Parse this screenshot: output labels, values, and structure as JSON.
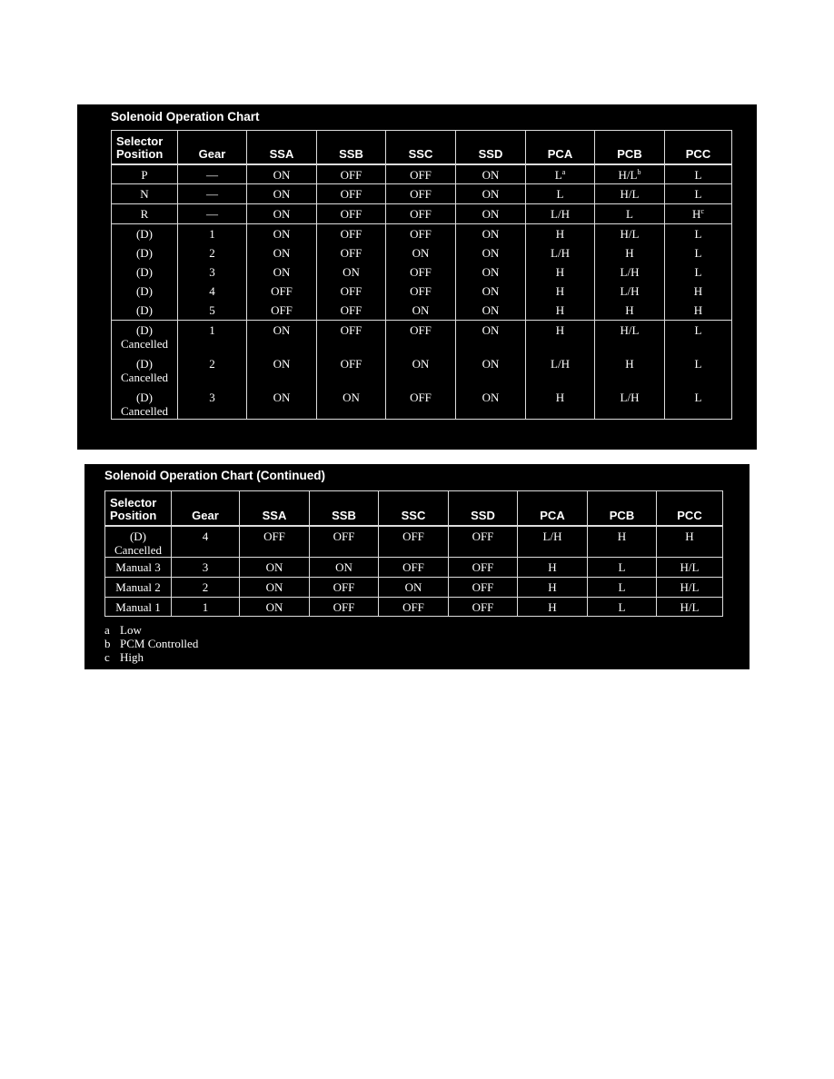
{
  "chart1": {
    "title": "Solenoid Operation Chart",
    "headers": [
      "Selector\nPosition",
      "Gear",
      "SSA",
      "SSB",
      "SSC",
      "SSD",
      "PCA",
      "PCB",
      "PCC"
    ],
    "rows": [
      {
        "sep": true,
        "h": 22,
        "cells": [
          "P",
          "—",
          "ON",
          "OFF",
          "OFF",
          "ON",
          [
            "L",
            "a"
          ],
          [
            "H/L",
            "b"
          ],
          "L"
        ]
      },
      {
        "sep": true,
        "h": 22,
        "cells": [
          "N",
          "—",
          "ON",
          "OFF",
          "OFF",
          "ON",
          "L",
          "H/L",
          "L"
        ]
      },
      {
        "sep": true,
        "h": 22,
        "cells": [
          "R",
          "—",
          "ON",
          "OFF",
          "OFF",
          "ON",
          "L/H",
          "L",
          [
            "H",
            "c"
          ]
        ]
      },
      {
        "sep": true,
        "h": 21,
        "cells": [
          "(D)",
          "1",
          "ON",
          "OFF",
          "OFF",
          "ON",
          "H",
          "H/L",
          "L"
        ]
      },
      {
        "h": 21,
        "cells": [
          "(D)",
          "2",
          "ON",
          "OFF",
          "ON",
          "ON",
          "L/H",
          "H",
          "L"
        ]
      },
      {
        "h": 21,
        "cells": [
          "(D)",
          "3",
          "ON",
          "ON",
          "OFF",
          "ON",
          "H",
          "L/H",
          "L"
        ]
      },
      {
        "h": 21,
        "cells": [
          "(D)",
          "4",
          "OFF",
          "OFF",
          "OFF",
          "ON",
          "H",
          "L/H",
          "H"
        ]
      },
      {
        "h": 22,
        "cells": [
          "(D)",
          "5",
          "OFF",
          "OFF",
          "ON",
          "ON",
          "H",
          "H",
          "H"
        ]
      },
      {
        "sep": true,
        "h": 37,
        "cells": [
          "(D)\nCancelled",
          "1",
          "ON",
          "OFF",
          "OFF",
          "ON",
          "H",
          "H/L",
          "L"
        ]
      },
      {
        "h": 37,
        "cells": [
          "(D)\nCancelled",
          "2",
          "ON",
          "OFF",
          "ON",
          "ON",
          "L/H",
          "H",
          "L"
        ]
      },
      {
        "last": true,
        "h": 35,
        "cells": [
          "(D)\nCancelled",
          "3",
          "ON",
          "ON",
          "OFF",
          "ON",
          "H",
          "L/H",
          "L"
        ]
      }
    ]
  },
  "chart2": {
    "title": "Solenoid Operation Chart (Continued)",
    "headers": [
      "Selector\nPosition",
      "Gear",
      "SSA",
      "SSB",
      "SSC",
      "SSD",
      "PCA",
      "PCB",
      "PCC"
    ],
    "rows": [
      {
        "h": 34,
        "cells": [
          "(D)\nCancelled",
          "4",
          "OFF",
          "OFF",
          "OFF",
          "OFF",
          "L/H",
          "H",
          "H"
        ]
      },
      {
        "sep": true,
        "h": 22,
        "cells": [
          "Manual 3",
          "3",
          "ON",
          "ON",
          "OFF",
          "OFF",
          "H",
          "L",
          "H/L"
        ]
      },
      {
        "sep": true,
        "h": 22,
        "cells": [
          "Manual 2",
          "2",
          "ON",
          "OFF",
          "ON",
          "OFF",
          "H",
          "L",
          "H/L"
        ]
      },
      {
        "sep": true,
        "last": true,
        "h": 21,
        "cells": [
          "Manual 1",
          "1",
          "ON",
          "OFF",
          "OFF",
          "OFF",
          "H",
          "L",
          "H/L"
        ]
      }
    ],
    "footnotes": [
      {
        "key": "a",
        "text": "Low"
      },
      {
        "key": "b",
        "text": "PCM Controlled"
      },
      {
        "key": "c",
        "text": "High"
      }
    ]
  }
}
